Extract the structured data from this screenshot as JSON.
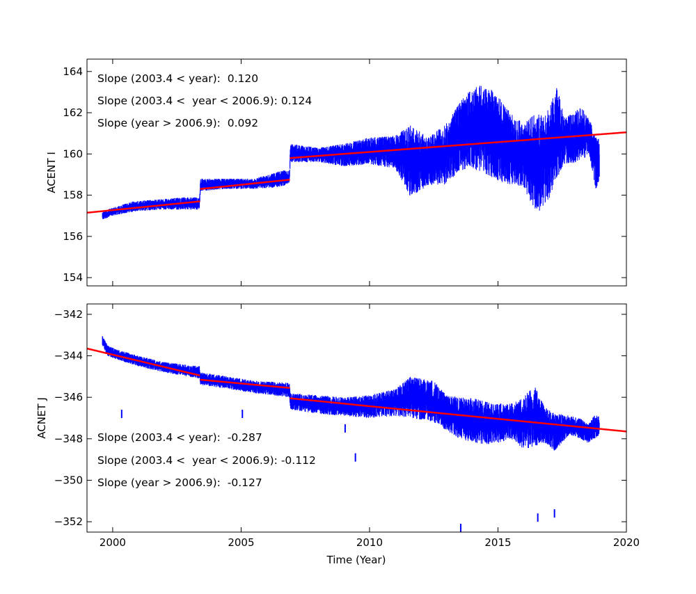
{
  "chart_data": [
    {
      "type": "line",
      "ylabel": "ACENT I",
      "xlabel": "",
      "xlim": [
        1999,
        2020
      ],
      "ylim": [
        153.6,
        164.6
      ],
      "yticks": [
        154,
        156,
        158,
        160,
        162,
        164
      ],
      "xticks": [
        2000,
        2005,
        2010,
        2015,
        2020
      ],
      "show_x_tick_labels": false,
      "grid": false,
      "series_color": "#0000ff",
      "fit_color": "#ff0000",
      "annotations": [
        "Slope (2003.4 < year):  0.120",
        "Slope (2003.4 <  year < 2006.9): 0.124",
        "Slope (year > 2006.9):  0.092"
      ],
      "data_envelope": [
        {
          "x": 1999.6,
          "min": 156.8,
          "max": 157.2
        },
        {
          "x": 2000.0,
          "min": 157.0,
          "max": 157.4
        },
        {
          "x": 2000.8,
          "min": 157.2,
          "max": 157.7
        },
        {
          "x": 2001.8,
          "min": 157.3,
          "max": 157.8
        },
        {
          "x": 2002.8,
          "min": 157.3,
          "max": 157.9
        },
        {
          "x": 2003.38,
          "min": 157.3,
          "max": 157.9
        },
        {
          "x": 2003.42,
          "min": 158.2,
          "max": 158.8
        },
        {
          "x": 2004.5,
          "min": 158.3,
          "max": 158.8
        },
        {
          "x": 2005.5,
          "min": 158.3,
          "max": 158.8
        },
        {
          "x": 2006.6,
          "min": 158.4,
          "max": 159.2
        },
        {
          "x": 2006.88,
          "min": 158.6,
          "max": 159.2
        },
        {
          "x": 2006.92,
          "min": 159.6,
          "max": 160.5
        },
        {
          "x": 2008.0,
          "min": 159.6,
          "max": 160.3
        },
        {
          "x": 2009.0,
          "min": 159.4,
          "max": 160.5
        },
        {
          "x": 2010.0,
          "min": 159.5,
          "max": 160.8
        },
        {
          "x": 2011.0,
          "min": 159.3,
          "max": 160.9
        },
        {
          "x": 2011.6,
          "min": 157.9,
          "max": 161.4
        },
        {
          "x": 2012.3,
          "min": 158.5,
          "max": 160.8
        },
        {
          "x": 2013.0,
          "min": 158.5,
          "max": 161.5
        },
        {
          "x": 2013.5,
          "min": 159.2,
          "max": 162.5
        },
        {
          "x": 2014.0,
          "min": 159.3,
          "max": 163.2
        },
        {
          "x": 2014.5,
          "min": 159.0,
          "max": 163.4
        },
        {
          "x": 2015.0,
          "min": 158.7,
          "max": 162.8
        },
        {
          "x": 2015.5,
          "min": 158.5,
          "max": 162.0
        },
        {
          "x": 2016.0,
          "min": 158.4,
          "max": 161.5
        },
        {
          "x": 2016.5,
          "min": 157.0,
          "max": 162.0
        },
        {
          "x": 2017.0,
          "min": 157.8,
          "max": 162.2
        },
        {
          "x": 2017.3,
          "min": 158.8,
          "max": 163.4
        },
        {
          "x": 2017.6,
          "min": 159.5,
          "max": 161.7
        },
        {
          "x": 2018.2,
          "min": 159.6,
          "max": 162.3
        },
        {
          "x": 2018.55,
          "min": 160.0,
          "max": 161.8
        },
        {
          "x": 2018.8,
          "min": 158.3,
          "max": 160.8
        },
        {
          "x": 2018.95,
          "min": 158.6,
          "max": 160.8
        }
      ],
      "fit_segments": [
        {
          "x": [
            1999.0,
            2003.4
          ],
          "y": [
            157.15,
            157.7
          ]
        },
        {
          "x": [
            2003.4,
            2006.9
          ],
          "y": [
            158.3,
            158.75
          ]
        },
        {
          "x": [
            2006.9,
            2020.0
          ],
          "y": [
            159.8,
            161.05
          ]
        }
      ]
    },
    {
      "type": "line",
      "ylabel": "ACNET J",
      "xlabel": "Time (Year)",
      "xlim": [
        1999,
        2020
      ],
      "ylim": [
        -352.5,
        -341.5
      ],
      "yticks": [
        -342,
        -344,
        -346,
        -348,
        -350,
        -352
      ],
      "ytick_labels": [
        "−342",
        "−344",
        "−346",
        "−348",
        "−350",
        "−352"
      ],
      "xticks": [
        2000,
        2005,
        2010,
        2015,
        2020
      ],
      "xtick_labels": [
        "2000",
        "2005",
        "2010",
        "2015",
        "2020"
      ],
      "show_x_tick_labels": true,
      "grid": false,
      "series_color": "#0000ff",
      "fit_color": "#ff0000",
      "annotations": [
        "Slope (2003.4 < year):  -0.287",
        "Slope (2003.4 <  year < 2006.9): -0.112",
        "Slope (year > 2006.9):  -0.127"
      ],
      "data_envelope": [
        {
          "x": 1999.6,
          "min": -343.5,
          "max": -343.0
        },
        {
          "x": 1999.8,
          "min": -344.0,
          "max": -343.5
        },
        {
          "x": 2000.2,
          "min": -344.2,
          "max": -343.7
        },
        {
          "x": 2001.0,
          "min": -344.5,
          "max": -344.0
        },
        {
          "x": 2002.0,
          "min": -344.8,
          "max": -344.3
        },
        {
          "x": 2003.38,
          "min": -345.1,
          "max": -344.5
        },
        {
          "x": 2003.42,
          "min": -345.4,
          "max": -344.8
        },
        {
          "x": 2004.5,
          "min": -345.6,
          "max": -345.0
        },
        {
          "x": 2005.5,
          "min": -345.8,
          "max": -345.2
        },
        {
          "x": 2006.88,
          "min": -346.0,
          "max": -345.3
        },
        {
          "x": 2006.92,
          "min": -346.6,
          "max": -345.8
        },
        {
          "x": 2008.0,
          "min": -346.8,
          "max": -345.9
        },
        {
          "x": 2009.0,
          "min": -346.9,
          "max": -346.0
        },
        {
          "x": 2010.0,
          "min": -347.0,
          "max": -345.9
        },
        {
          "x": 2011.0,
          "min": -346.9,
          "max": -345.6
        },
        {
          "x": 2011.6,
          "min": -347.0,
          "max": -345.0
        },
        {
          "x": 2012.5,
          "min": -347.2,
          "max": -345.2
        },
        {
          "x": 2013.0,
          "min": -347.6,
          "max": -345.9
        },
        {
          "x": 2013.5,
          "min": -348.0,
          "max": -346.0
        },
        {
          "x": 2014.0,
          "min": -348.2,
          "max": -346.0
        },
        {
          "x": 2014.5,
          "min": -348.3,
          "max": -346.2
        },
        {
          "x": 2015.0,
          "min": -348.2,
          "max": -346.3
        },
        {
          "x": 2015.5,
          "min": -348.0,
          "max": -346.3
        },
        {
          "x": 2016.0,
          "min": -348.5,
          "max": -346.0
        },
        {
          "x": 2016.4,
          "min": -348.4,
          "max": -345.4
        },
        {
          "x": 2016.8,
          "min": -348.2,
          "max": -346.4
        },
        {
          "x": 2017.2,
          "min": -348.6,
          "max": -346.8
        },
        {
          "x": 2017.5,
          "min": -348.2,
          "max": -346.8
        },
        {
          "x": 2017.8,
          "min": -347.8,
          "max": -346.9
        },
        {
          "x": 2018.2,
          "min": -348.0,
          "max": -347.0
        },
        {
          "x": 2018.5,
          "min": -348.2,
          "max": -347.3
        },
        {
          "x": 2018.8,
          "min": -348.0,
          "max": -346.8
        },
        {
          "x": 2018.95,
          "min": -347.8,
          "max": -346.9
        }
      ],
      "outliers": [
        {
          "x": 2000.35,
          "y": -346.8
        },
        {
          "x": 2005.05,
          "y": -346.8
        },
        {
          "x": 2009.05,
          "y": -347.5
        },
        {
          "x": 2009.45,
          "y": -348.9
        },
        {
          "x": 2013.55,
          "y": -352.3
        },
        {
          "x": 2016.55,
          "y": -351.8
        },
        {
          "x": 2017.2,
          "y": -351.6
        }
      ],
      "fit_segments": [
        {
          "x": [
            1999.0,
            2003.4
          ],
          "y": [
            -343.65,
            -344.95
          ]
        },
        {
          "x": [
            2003.4,
            2006.9
          ],
          "y": [
            -345.15,
            -345.55
          ]
        },
        {
          "x": [
            2006.9,
            2020.0
          ],
          "y": [
            -346.05,
            -347.65
          ]
        }
      ]
    }
  ]
}
